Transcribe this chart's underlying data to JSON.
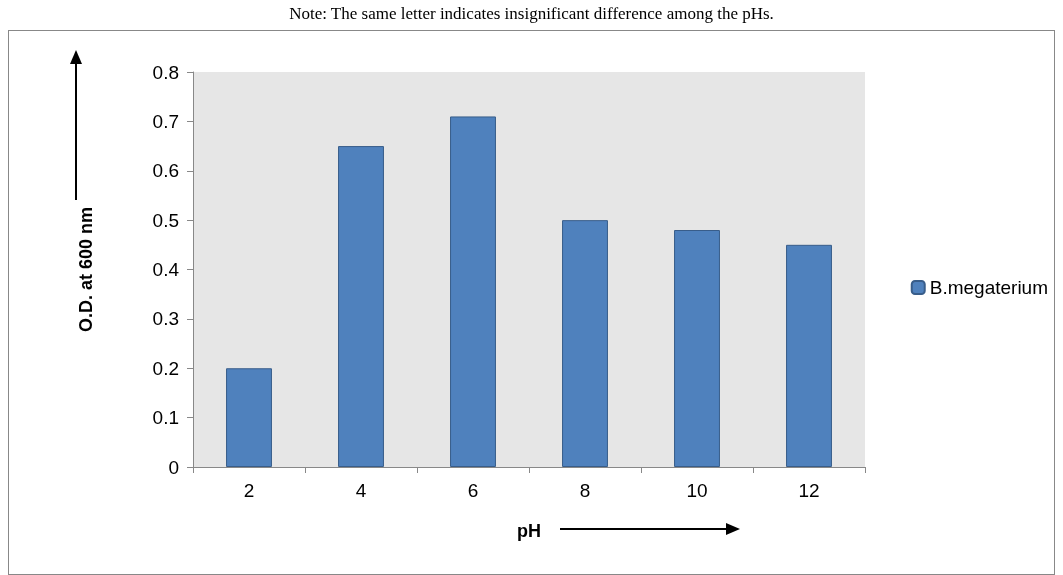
{
  "chart_data": {
    "type": "bar",
    "annotations": [
      "Note: The same letter indicates insignificant difference among the pHs."
    ],
    "xlabel": "pH",
    "ylabel": "O.D. at 600 nm",
    "categories": [
      "2",
      "4",
      "6",
      "8",
      "10",
      "12"
    ],
    "series": [
      {
        "name": "B.megaterium",
        "color": "#4f81bd",
        "values": [
          0.2,
          0.65,
          0.71,
          0.5,
          0.48,
          0.45
        ]
      }
    ],
    "ylim": [
      0,
      0.8
    ],
    "yticks": [
      0,
      0.1,
      0.2,
      0.3,
      0.4,
      0.5,
      0.6,
      0.7,
      0.8
    ],
    "grid": false,
    "legend": "right"
  }
}
